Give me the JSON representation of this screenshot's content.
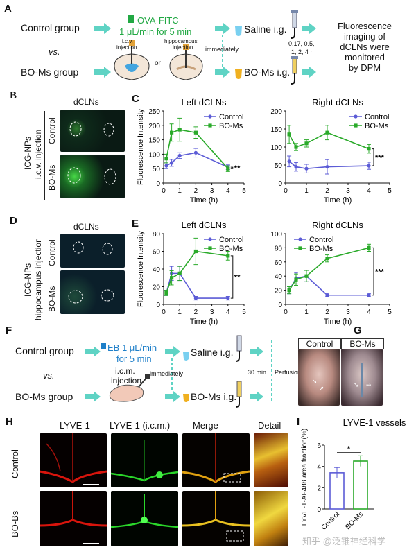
{
  "panel_letters": {
    "A": "A",
    "B": "B",
    "C": "C",
    "D": "D",
    "E": "E",
    "F": "F",
    "G": "G",
    "H": "H",
    "I": "I"
  },
  "panelA": {
    "control_group": "Control group",
    "vs": "vs.",
    "bo_group": "BO-Ms group",
    "ova_title": "OVA-FITC",
    "ova_rate": "1 μL/min for 5 min",
    "icv_label_1": "i.c.v.",
    "icv_label_2": "injection",
    "or": "or",
    "hippo_label_1": "hippocampus",
    "hippo_label_2": "injection",
    "immediately": "immediately",
    "saline": "Saline i.g.",
    "bo_ig": "BO-Ms i.g.",
    "times_1": "0.17, 0.5,",
    "times_2": "1, 2, 4 h",
    "result_1": "Fluorescence",
    "result_2": "imaging of",
    "result_3": "dCLNs were",
    "result_4": "monitored",
    "result_5": "by DPM"
  },
  "panelB": {
    "title": "dCLNs",
    "side_1": "ICG-NPs",
    "side_2": "i.c.v. injection",
    "row1": "Control",
    "row2": "BO-Ms"
  },
  "panelD": {
    "title": "dCLNs",
    "side_1": "ICG-NPs",
    "side_2": "hippocampus injection",
    "row1": "Control",
    "row2": "BO-Ms"
  },
  "panelF": {
    "control_group": "Control group",
    "vs": "vs.",
    "bo_group": "BO-Ms group",
    "eb_1": "EB 1 μL/min",
    "eb_2": "for 5 min",
    "icm_1": "i.c.m.",
    "icm_2": "injection",
    "immediately": "immediately",
    "saline": "Saline i.g.",
    "bo_ig": "BO-Ms i.g.",
    "wait": "30 min",
    "perfusion": "Perfusion"
  },
  "panelG": {
    "label_control": "Control",
    "label_bo": "BO-Ms"
  },
  "panelH": {
    "col1": "LYVE-1",
    "col2": "LYVE-1 (i.c.m.)",
    "col3": "Merge",
    "col4": "Detail",
    "row1": "Control",
    "row2": "BO-Bs"
  },
  "watermark": "知乎 @泛锥神经科学",
  "colors": {
    "control": "#5b5bd6",
    "bo": "#2aaa2a",
    "arrow": "#5fd3c4",
    "eb_green": "#22a844",
    "eb_blue": "#1e7fc9"
  },
  "chart_data": [
    {
      "id": "C-left",
      "type": "line",
      "title": "Left dCLNs",
      "xlabel": "Time (h)",
      "ylabel": "Fluorescence Intensity",
      "xlim": [
        0,
        5
      ],
      "ylim": [
        0,
        250
      ],
      "xticks": [
        0,
        1,
        2,
        3,
        4,
        5
      ],
      "yticks": [
        0,
        50,
        100,
        150,
        200,
        250
      ],
      "x": [
        0.17,
        0.5,
        1,
        2,
        4
      ],
      "series": [
        {
          "name": "Control",
          "values": [
            60,
            70,
            95,
            105,
            55
          ],
          "err": [
            10,
            12,
            10,
            15,
            8
          ]
        },
        {
          "name": "BO-Ms",
          "values": [
            85,
            175,
            185,
            175,
            50
          ],
          "err": [
            15,
            30,
            40,
            20,
            10
          ]
        }
      ],
      "significance": "**",
      "legend": "top-right"
    },
    {
      "id": "C-right",
      "type": "line",
      "title": "Right dCLNs",
      "xlabel": "Time (h)",
      "ylabel": "",
      "xlim": [
        0,
        5
      ],
      "ylim": [
        0,
        200
      ],
      "xticks": [
        0,
        1,
        2,
        3,
        4,
        5
      ],
      "yticks": [
        0,
        50,
        100,
        150,
        200
      ],
      "x": [
        0.17,
        0.5,
        1,
        2,
        4
      ],
      "series": [
        {
          "name": "Control",
          "values": [
            60,
            45,
            40,
            45,
            48
          ],
          "err": [
            15,
            12,
            12,
            20,
            10
          ]
        },
        {
          "name": "BO-Ms",
          "values": [
            135,
            100,
            110,
            140,
            95
          ],
          "err": [
            25,
            10,
            10,
            20,
            12
          ]
        }
      ],
      "significance": "***",
      "legend": "top-right"
    },
    {
      "id": "E-left",
      "type": "line",
      "title": "Left dCLNs",
      "xlabel": "Time (h)",
      "ylabel": "Fluorescence Intensity",
      "xlim": [
        0,
        5
      ],
      "ylim": [
        0,
        80
      ],
      "xticks": [
        0,
        1,
        2,
        3,
        4,
        5
      ],
      "yticks": [
        0,
        20,
        40,
        60,
        80
      ],
      "x": [
        0.17,
        0.5,
        1,
        2,
        4
      ],
      "series": [
        {
          "name": "Control",
          "values": [
            13,
            35,
            35,
            7,
            7
          ],
          "err": [
            3,
            8,
            8,
            2,
            2
          ]
        },
        {
          "name": "BO-Ms",
          "values": [
            13,
            30,
            35,
            60,
            55
          ],
          "err": [
            3,
            8,
            8,
            15,
            5
          ]
        }
      ],
      "significance": "**",
      "legend": "top-right"
    },
    {
      "id": "E-right",
      "type": "line",
      "title": "Right dCLNs",
      "xlabel": "Time (h)",
      "ylabel": "",
      "xlim": [
        0,
        5
      ],
      "ylim": [
        0,
        100
      ],
      "xticks": [
        0,
        1,
        2,
        3,
        4,
        5
      ],
      "yticks": [
        0,
        20,
        40,
        60,
        80,
        100
      ],
      "x": [
        0.17,
        0.5,
        1,
        2,
        4
      ],
      "series": [
        {
          "name": "Control",
          "values": [
            20,
            37,
            40,
            13,
            13
          ],
          "err": [
            5,
            8,
            8,
            2,
            2
          ]
        },
        {
          "name": "BO-Ms",
          "values": [
            20,
            35,
            40,
            65,
            80
          ],
          "err": [
            5,
            8,
            8,
            5,
            5
          ]
        }
      ],
      "significance": "***",
      "legend": "top-left"
    },
    {
      "id": "I",
      "type": "bar",
      "title": "LYVE-1 vessels",
      "ylabel": "LYVE-1-AF488 area fraction(%)",
      "categories": [
        "Control",
        "BO-Ms"
      ],
      "values": [
        3.4,
        4.5
      ],
      "err": [
        0.5,
        0.5
      ],
      "ylim": [
        0,
        6
      ],
      "yticks": [
        0,
        2,
        4,
        6
      ],
      "significance": "*"
    }
  ]
}
